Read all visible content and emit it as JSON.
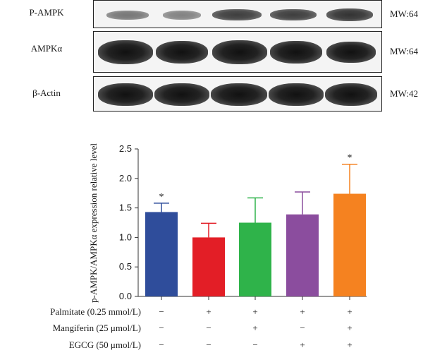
{
  "blots": {
    "rows": [
      {
        "label": "P-AMPK",
        "mw": "MW:64"
      },
      {
        "label": "AMPKα",
        "mw": "MW:64"
      },
      {
        "label": "β-Actin",
        "mw": "MW:42"
      }
    ]
  },
  "chart_data": {
    "type": "bar",
    "xlabel": "",
    "ylabel": "p-AMPK/AMPKα expression relative level",
    "ylim": [
      0,
      2.5
    ],
    "yticks": [
      "0.0",
      "0.5",
      "1.0",
      "1.5",
      "2.0",
      "2.5"
    ],
    "grid": false,
    "values": [
      1.43,
      1.0,
      1.25,
      1.39,
      1.74
    ],
    "errors": [
      0.15,
      0.24,
      0.42,
      0.38,
      0.5
    ],
    "colors": [
      "#2f4d9b",
      "#e31e26",
      "#2fb34a",
      "#8b4d9e",
      "#f58220"
    ],
    "significance": [
      "*",
      "",
      "",
      "",
      "*"
    ]
  },
  "conditions": [
    {
      "label": "Palmitate (0.25 mmol/L)",
      "signs": [
        "−",
        "+",
        "+",
        "+",
        "+"
      ]
    },
    {
      "label": "Mangiferin (25 μmol/L)",
      "signs": [
        "−",
        "−",
        "+",
        "−",
        "+"
      ]
    },
    {
      "label": "EGCG (50 μmol/L)",
      "signs": [
        "−",
        "−",
        "−",
        "+",
        "+"
      ]
    }
  ]
}
